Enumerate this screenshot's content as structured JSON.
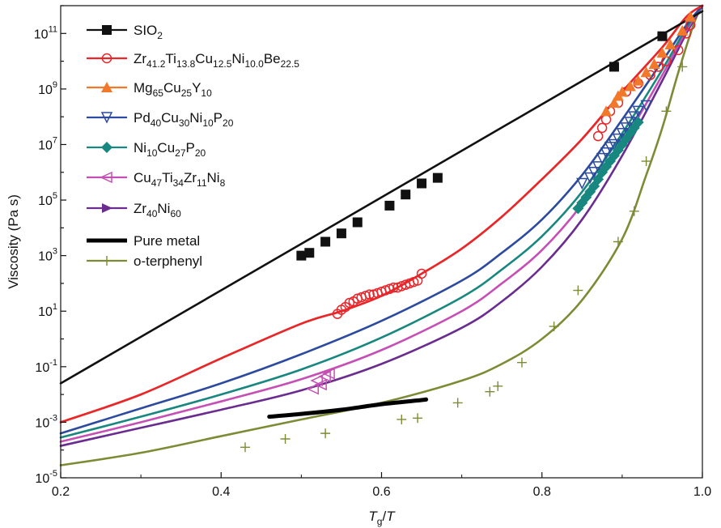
{
  "chart_data": {
    "type": "line",
    "xlabel": "Tg/T",
    "ylabel": "Viscosity (Pa s)",
    "xlim": [
      0.2,
      1.0
    ],
    "ylim_log10": [
      -5,
      12
    ],
    "y_scale": "log",
    "x_ticks": [
      "0.2",
      "0.4",
      "0.6",
      "0.8",
      "1.0"
    ],
    "y_ticks": [
      {
        "base": "10",
        "exp": "11",
        "log": 11
      },
      {
        "base": "10",
        "exp": "9",
        "log": 9
      },
      {
        "base": "10",
        "exp": "7",
        "log": 7
      },
      {
        "base": "10",
        "exp": "5",
        "log": 5
      },
      {
        "base": "10",
        "exp": "3",
        "log": 3
      },
      {
        "base": "10",
        "exp": "1",
        "log": 1
      },
      {
        "base": "10",
        "exp": "-1",
        "log": -1
      },
      {
        "base": "10",
        "exp": "-3",
        "log": -3
      },
      {
        "base": "10",
        "exp": "-5",
        "log": -5
      }
    ],
    "grid": false,
    "legend_position": "top-left",
    "series": [
      {
        "name": "SIO2",
        "label_parts": [
          [
            "SIO",
            ""
          ],
          [
            "2",
            "sub"
          ]
        ],
        "color": "#111111",
        "marker": "square",
        "curve": [
          [
            0.2,
            -1.6
          ],
          [
            1.0,
            11.8
          ]
        ],
        "points": [
          [
            0.5,
            3.0
          ],
          [
            0.51,
            3.1
          ],
          [
            0.53,
            3.5
          ],
          [
            0.55,
            3.8
          ],
          [
            0.57,
            4.2
          ],
          [
            0.61,
            4.8
          ],
          [
            0.63,
            5.2
          ],
          [
            0.65,
            5.6
          ],
          [
            0.67,
            5.8
          ],
          [
            0.89,
            9.8
          ],
          [
            0.95,
            10.9
          ]
        ]
      },
      {
        "name": "Zr41.2Ti13.8Cu12.5Ni10.0Be22.5",
        "label_parts": [
          [
            "Zr",
            ""
          ],
          [
            "41.2",
            "sub"
          ],
          [
            "Ti",
            ""
          ],
          [
            "13.8",
            "sub"
          ],
          [
            "Cu",
            ""
          ],
          [
            "12.5",
            "sub"
          ],
          [
            "Ni",
            ""
          ],
          [
            "10.0",
            "sub"
          ],
          [
            "Be",
            ""
          ],
          [
            "22.5",
            "sub"
          ]
        ],
        "color": "#e8262b",
        "marker": "circle",
        "curve": [
          [
            0.2,
            -3.0
          ],
          [
            0.3,
            -2.0
          ],
          [
            0.4,
            -0.7
          ],
          [
            0.5,
            0.55
          ],
          [
            0.55,
            1.0
          ],
          [
            0.6,
            1.55
          ],
          [
            0.65,
            2.35
          ],
          [
            0.7,
            3.25
          ],
          [
            0.75,
            4.4
          ],
          [
            0.8,
            5.75
          ],
          [
            0.85,
            7.2
          ],
          [
            0.9,
            8.9
          ],
          [
            0.95,
            10.5
          ],
          [
            0.98,
            11.6
          ],
          [
            1.0,
            12.0
          ]
        ],
        "points": [
          [
            0.545,
            0.9
          ],
          [
            0.55,
            1.05
          ],
          [
            0.555,
            1.15
          ],
          [
            0.56,
            1.3
          ],
          [
            0.565,
            1.35
          ],
          [
            0.57,
            1.45
          ],
          [
            0.575,
            1.5
          ],
          [
            0.58,
            1.55
          ],
          [
            0.585,
            1.6
          ],
          [
            0.59,
            1.6
          ],
          [
            0.595,
            1.65
          ],
          [
            0.6,
            1.7
          ],
          [
            0.605,
            1.75
          ],
          [
            0.61,
            1.8
          ],
          [
            0.615,
            1.85
          ],
          [
            0.62,
            1.85
          ],
          [
            0.625,
            1.9
          ],
          [
            0.63,
            1.95
          ],
          [
            0.635,
            2.0
          ],
          [
            0.64,
            2.05
          ],
          [
            0.645,
            2.1
          ],
          [
            0.65,
            2.35
          ],
          [
            0.87,
            7.3
          ],
          [
            0.875,
            7.6
          ],
          [
            0.88,
            7.9
          ],
          [
            0.885,
            8.2
          ],
          [
            0.895,
            8.5
          ],
          [
            0.905,
            8.9
          ],
          [
            0.92,
            9.2
          ],
          [
            0.935,
            9.5
          ],
          [
            0.945,
            9.8
          ],
          [
            0.955,
            10.0
          ],
          [
            0.97,
            10.4
          ],
          [
            0.98,
            11.0
          ],
          [
            0.985,
            11.3
          ]
        ]
      },
      {
        "name": "Mg65Cu25Y10",
        "label_parts": [
          [
            "Mg",
            ""
          ],
          [
            "65",
            "sub"
          ],
          [
            "Cu",
            ""
          ],
          [
            "25",
            "sub"
          ],
          [
            "Y",
            ""
          ],
          [
            "10",
            "sub"
          ]
        ],
        "color": "#f2782a",
        "marker": "triangle-up",
        "curve": [
          [
            0.2,
            -3.0
          ],
          [
            0.3,
            -2.0
          ],
          [
            0.4,
            -0.7
          ],
          [
            0.5,
            0.55
          ],
          [
            0.55,
            1.0
          ],
          [
            0.6,
            1.55
          ],
          [
            0.65,
            2.35
          ],
          [
            0.7,
            3.25
          ],
          [
            0.75,
            4.4
          ],
          [
            0.8,
            5.75
          ],
          [
            0.85,
            7.2
          ],
          [
            0.9,
            8.9
          ],
          [
            0.95,
            10.5
          ],
          [
            0.98,
            11.6
          ],
          [
            1.0,
            12.0
          ]
        ],
        "points": [
          [
            0.88,
            8.2
          ],
          [
            0.89,
            8.5
          ],
          [
            0.895,
            8.75
          ],
          [
            0.9,
            8.9
          ],
          [
            0.91,
            9.1
          ],
          [
            0.92,
            9.3
          ],
          [
            0.93,
            9.6
          ],
          [
            0.94,
            9.9
          ],
          [
            0.95,
            10.3
          ],
          [
            0.96,
            10.6
          ],
          [
            0.975,
            11.1
          ],
          [
            0.985,
            11.6
          ]
        ]
      },
      {
        "name": "Pd40Cu30Ni10P20",
        "label_parts": [
          [
            "Pd",
            ""
          ],
          [
            "40",
            "sub"
          ],
          [
            "Cu",
            ""
          ],
          [
            "30",
            "sub"
          ],
          [
            "Ni",
            ""
          ],
          [
            "10",
            "sub"
          ],
          [
            "P",
            ""
          ],
          [
            "20",
            "sub"
          ]
        ],
        "color": "#2c4a9e",
        "marker": "triangle-down",
        "curve": [
          [
            0.2,
            -3.4
          ],
          [
            0.3,
            -2.5
          ],
          [
            0.4,
            -1.6
          ],
          [
            0.5,
            -0.55
          ],
          [
            0.6,
            0.65
          ],
          [
            0.7,
            2.1
          ],
          [
            0.75,
            3.1
          ],
          [
            0.8,
            4.3
          ],
          [
            0.85,
            5.9
          ],
          [
            0.9,
            7.9
          ],
          [
            0.95,
            10.0
          ],
          [
            0.98,
            11.3
          ],
          [
            1.0,
            12.0
          ]
        ],
        "points": [
          [
            0.85,
            5.6
          ],
          [
            0.86,
            5.8
          ],
          [
            0.865,
            6.0
          ],
          [
            0.87,
            6.2
          ],
          [
            0.875,
            6.5
          ],
          [
            0.88,
            6.7
          ],
          [
            0.885,
            6.9
          ],
          [
            0.89,
            7.0
          ],
          [
            0.895,
            7.2
          ],
          [
            0.9,
            7.4
          ],
          [
            0.905,
            7.6
          ],
          [
            0.91,
            7.8
          ],
          [
            0.915,
            8.0
          ],
          [
            0.92,
            8.2
          ],
          [
            0.93,
            8.4
          ]
        ]
      },
      {
        "name": "Ni10Cu27P20",
        "label_parts": [
          [
            "Ni",
            ""
          ],
          [
            "10",
            "sub"
          ],
          [
            "Cu",
            ""
          ],
          [
            "27",
            "sub"
          ],
          [
            "P",
            ""
          ],
          [
            "20",
            "sub"
          ]
        ],
        "color": "#17877f",
        "marker": "diamond",
        "curve": [
          [
            0.2,
            -3.55
          ],
          [
            0.3,
            -2.8
          ],
          [
            0.4,
            -2.0
          ],
          [
            0.5,
            -1.1
          ],
          [
            0.6,
            0.05
          ],
          [
            0.7,
            1.5
          ],
          [
            0.75,
            2.5
          ],
          [
            0.8,
            3.7
          ],
          [
            0.85,
            5.3
          ],
          [
            0.9,
            7.4
          ],
          [
            0.95,
            9.7
          ],
          [
            0.98,
            11.2
          ],
          [
            1.0,
            12.0
          ]
        ],
        "points": [
          [
            0.845,
            4.7
          ],
          [
            0.85,
            4.9
          ],
          [
            0.855,
            5.1
          ],
          [
            0.86,
            5.3
          ],
          [
            0.865,
            5.5
          ],
          [
            0.87,
            5.75
          ],
          [
            0.875,
            6.0
          ],
          [
            0.88,
            6.2
          ],
          [
            0.885,
            6.4
          ],
          [
            0.89,
            6.6
          ],
          [
            0.895,
            6.8
          ],
          [
            0.9,
            7.0
          ],
          [
            0.905,
            7.2
          ],
          [
            0.91,
            7.4
          ],
          [
            0.915,
            7.6
          ],
          [
            0.92,
            7.8
          ]
        ]
      },
      {
        "name": "Cu47Ti34Zr11Ni8",
        "label_parts": [
          [
            "Cu",
            ""
          ],
          [
            "47",
            "sub"
          ],
          [
            "Ti",
            ""
          ],
          [
            "34",
            "sub"
          ],
          [
            "Zr",
            ""
          ],
          [
            "11",
            "sub"
          ],
          [
            "Ni",
            ""
          ],
          [
            "8",
            "sub"
          ]
        ],
        "color": "#c54fb4",
        "marker": "triangle-left",
        "curve": [
          [
            0.2,
            -3.7
          ],
          [
            0.3,
            -3.0
          ],
          [
            0.4,
            -2.25
          ],
          [
            0.5,
            -1.45
          ],
          [
            0.6,
            -0.4
          ],
          [
            0.7,
            1.0
          ],
          [
            0.75,
            2.0
          ],
          [
            0.8,
            3.2
          ],
          [
            0.85,
            4.85
          ],
          [
            0.9,
            7.0
          ],
          [
            0.95,
            9.5
          ],
          [
            0.98,
            11.1
          ],
          [
            1.0,
            12.0
          ]
        ],
        "points": [
          [
            0.52,
            -1.5
          ],
          [
            0.525,
            -1.65
          ],
          [
            0.53,
            -1.35
          ],
          [
            0.535,
            -1.25
          ],
          [
            0.515,
            -1.8
          ]
        ]
      },
      {
        "name": "Zr40Ni60",
        "label_parts": [
          [
            "Zr",
            ""
          ],
          [
            "40",
            "sub"
          ],
          [
            "Ni",
            ""
          ],
          [
            "60",
            "sub"
          ]
        ],
        "color": "#6a2d8f",
        "marker": "triangle-right",
        "curve": [
          [
            0.2,
            -3.85
          ],
          [
            0.3,
            -3.2
          ],
          [
            0.4,
            -2.55
          ],
          [
            0.5,
            -1.85
          ],
          [
            0.6,
            -0.9
          ],
          [
            0.7,
            0.4
          ],
          [
            0.75,
            1.35
          ],
          [
            0.8,
            2.6
          ],
          [
            0.85,
            4.3
          ],
          [
            0.9,
            6.6
          ],
          [
            0.95,
            9.3
          ],
          [
            0.98,
            11.0
          ],
          [
            1.0,
            12.0
          ]
        ],
        "points": []
      },
      {
        "name": "Pure metal",
        "label_parts": [
          [
            "Pure metal",
            ""
          ]
        ],
        "color": "#000000",
        "marker": "thick-line",
        "curve": [
          [
            0.46,
            -2.8
          ],
          [
            0.5,
            -2.7
          ],
          [
            0.55,
            -2.55
          ],
          [
            0.6,
            -2.35
          ],
          [
            0.65,
            -2.2
          ],
          [
            0.655,
            -2.18
          ]
        ],
        "points": []
      },
      {
        "name": "o-terphenyl",
        "label_parts": [
          [
            "o-terphenyl",
            ""
          ]
        ],
        "color": "#7e8b35",
        "marker": "plus",
        "curve": [
          [
            0.2,
            -4.55
          ],
          [
            0.3,
            -4.1
          ],
          [
            0.4,
            -3.5
          ],
          [
            0.5,
            -2.9
          ],
          [
            0.6,
            -2.3
          ],
          [
            0.7,
            -1.5
          ],
          [
            0.75,
            -0.9
          ],
          [
            0.8,
            0.0
          ],
          [
            0.85,
            1.4
          ],
          [
            0.9,
            3.6
          ],
          [
            0.93,
            5.9
          ],
          [
            0.95,
            7.6
          ],
          [
            0.97,
            9.6
          ],
          [
            0.99,
            11.4
          ],
          [
            1.0,
            12.0
          ]
        ],
        "points": [
          [
            0.43,
            -3.9
          ],
          [
            0.48,
            -3.6
          ],
          [
            0.53,
            -3.4
          ],
          [
            0.625,
            -2.9
          ],
          [
            0.645,
            -2.85
          ],
          [
            0.695,
            -2.3
          ],
          [
            0.735,
            -1.9
          ],
          [
            0.745,
            -1.7
          ],
          [
            0.775,
            -0.85
          ],
          [
            0.815,
            0.45
          ],
          [
            0.845,
            1.75
          ],
          [
            0.895,
            3.5
          ],
          [
            0.915,
            4.6
          ],
          [
            0.93,
            6.4
          ],
          [
            0.955,
            8.2
          ],
          [
            0.975,
            9.8
          ]
        ]
      }
    ]
  }
}
